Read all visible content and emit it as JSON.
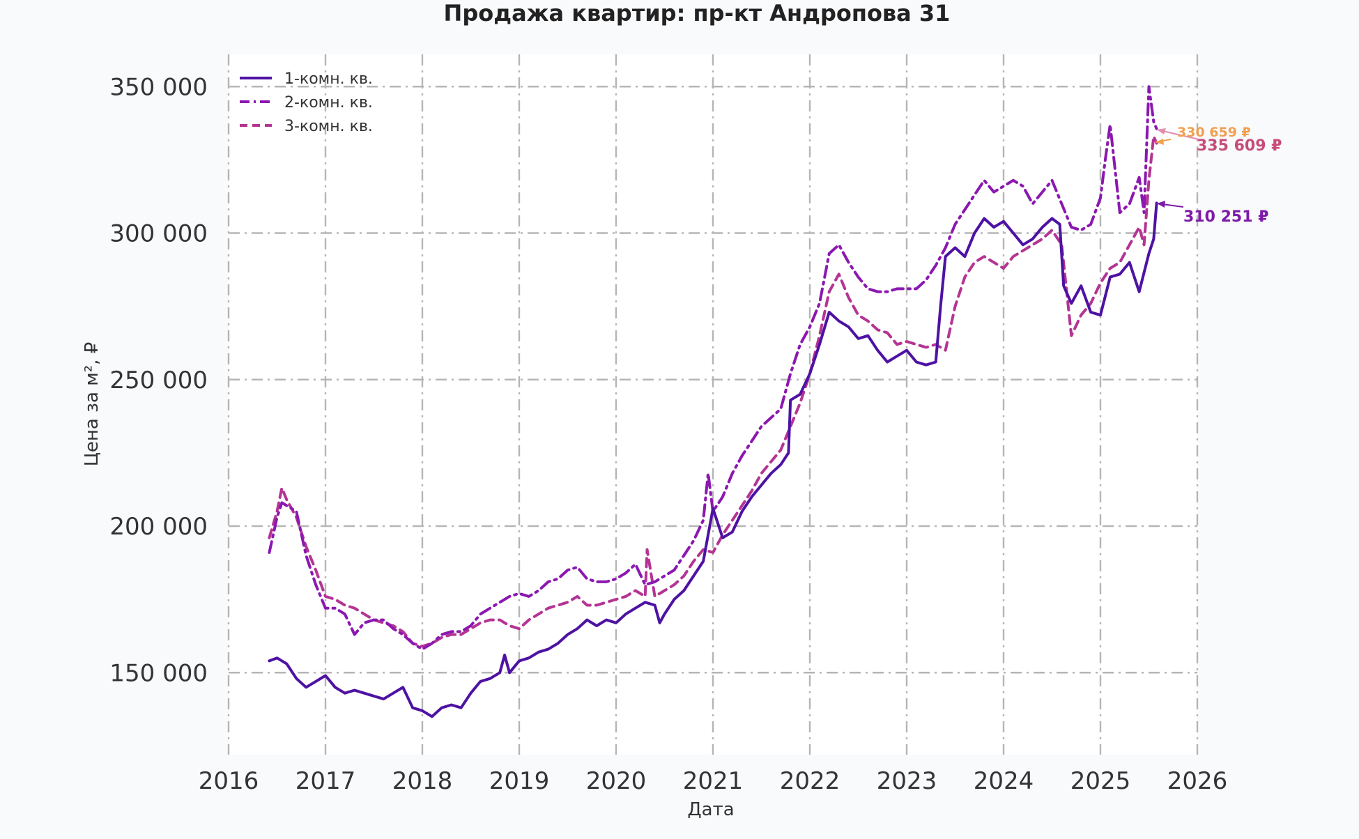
{
  "chart_data": {
    "type": "line",
    "title": "Продажа квартир: пр-кт Андропова 31",
    "xlabel": "Дата",
    "ylabel": "Цена за м², ₽",
    "xlim": [
      2016.0,
      2026.0
    ],
    "ylim": [
      122000,
      361000
    ],
    "x_ticks": [
      "2016",
      "2017",
      "2018",
      "2019",
      "2020",
      "2021",
      "2022",
      "2023",
      "2024",
      "2025",
      "2026"
    ],
    "y_ticks": [
      {
        "value": 150000,
        "label": "150 000"
      },
      {
        "value": 200000,
        "label": "200 000"
      },
      {
        "value": 250000,
        "label": "250 000"
      },
      {
        "value": 300000,
        "label": "300 000"
      },
      {
        "value": 350000,
        "label": "350 000"
      }
    ],
    "grid": true,
    "legend_position": "top-left",
    "series": [
      {
        "name": "1-комн. кв.",
        "color": "#4e12a3",
        "style": "solid",
        "x": [
          2016.42,
          2016.5,
          2016.6,
          2016.7,
          2016.8,
          2016.9,
          2017.0,
          2017.1,
          2017.2,
          2017.3,
          2017.4,
          2017.5,
          2017.6,
          2017.7,
          2017.8,
          2017.9,
          2018.0,
          2018.1,
          2018.2,
          2018.3,
          2018.4,
          2018.5,
          2018.6,
          2018.7,
          2018.8,
          2018.85,
          2018.9,
          2019.0,
          2019.1,
          2019.2,
          2019.3,
          2019.4,
          2019.5,
          2019.6,
          2019.7,
          2019.8,
          2019.9,
          2020.0,
          2020.1,
          2020.2,
          2020.3,
          2020.4,
          2020.45,
          2020.5,
          2020.6,
          2020.7,
          2020.8,
          2020.9,
          2021.0,
          2021.1,
          2021.2,
          2021.3,
          2021.4,
          2021.5,
          2021.6,
          2021.7,
          2021.78,
          2021.8,
          2021.9,
          2022.0,
          2022.1,
          2022.2,
          2022.3,
          2022.4,
          2022.5,
          2022.6,
          2022.7,
          2022.8,
          2022.9,
          2023.0,
          2023.1,
          2023.2,
          2023.3,
          2023.35,
          2023.4,
          2023.5,
          2023.6,
          2023.7,
          2023.8,
          2023.9,
          2024.0,
          2024.1,
          2024.2,
          2024.3,
          2024.4,
          2024.5,
          2024.58,
          2024.62,
          2024.7,
          2024.8,
          2024.9,
          2025.0,
          2025.1,
          2025.2,
          2025.3,
          2025.4,
          2025.5,
          2025.55,
          2025.58
        ],
        "values": [
          154000,
          155000,
          153000,
          148000,
          145000,
          147000,
          149000,
          145000,
          143000,
          144000,
          143000,
          142000,
          141000,
          143000,
          145000,
          138000,
          137000,
          135000,
          138000,
          139000,
          138000,
          143000,
          147000,
          148000,
          150000,
          156000,
          150000,
          154000,
          155000,
          157000,
          158000,
          160000,
          163000,
          165000,
          168000,
          166000,
          168000,
          167000,
          170000,
          172000,
          174000,
          173000,
          167000,
          170000,
          175000,
          178000,
          183000,
          188000,
          206000,
          196000,
          198000,
          205000,
          210000,
          214000,
          218000,
          221000,
          225000,
          243000,
          245000,
          252000,
          262000,
          273000,
          270000,
          268000,
          264000,
          265000,
          260000,
          256000,
          258000,
          260000,
          256000,
          255000,
          256000,
          275000,
          292000,
          295000,
          292000,
          300000,
          305000,
          302000,
          304000,
          300000,
          296000,
          298000,
          302000,
          305000,
          303000,
          282000,
          276000,
          282000,
          273000,
          272000,
          285000,
          286000,
          290000,
          280000,
          293000,
          298000,
          310251
        ]
      },
      {
        "name": "2-комн. кв.",
        "color": "#8b18b0",
        "style": "dashdot",
        "x": [
          2016.42,
          2016.5,
          2016.55,
          2016.6,
          2016.7,
          2016.8,
          2016.9,
          2017.0,
          2017.1,
          2017.2,
          2017.3,
          2017.4,
          2017.5,
          2017.6,
          2017.7,
          2017.8,
          2017.9,
          2018.0,
          2018.1,
          2018.2,
          2018.3,
          2018.4,
          2018.5,
          2018.6,
          2018.7,
          2018.8,
          2018.9,
          2019.0,
          2019.1,
          2019.2,
          2019.3,
          2019.4,
          2019.5,
          2019.6,
          2019.7,
          2019.8,
          2019.9,
          2020.0,
          2020.1,
          2020.2,
          2020.3,
          2020.4,
          2020.5,
          2020.6,
          2020.7,
          2020.8,
          2020.9,
          2020.95,
          2021.0,
          2021.1,
          2021.2,
          2021.3,
          2021.4,
          2021.5,
          2021.6,
          2021.7,
          2021.8,
          2021.9,
          2022.0,
          2022.1,
          2022.2,
          2022.3,
          2022.4,
          2022.5,
          2022.6,
          2022.7,
          2022.8,
          2022.9,
          2023.0,
          2023.1,
          2023.2,
          2023.3,
          2023.4,
          2023.5,
          2023.6,
          2023.7,
          2023.8,
          2023.9,
          2024.0,
          2024.1,
          2024.2,
          2024.3,
          2024.4,
          2024.5,
          2024.6,
          2024.7,
          2024.8,
          2024.9,
          2025.0,
          2025.05,
          2025.1,
          2025.2,
          2025.3,
          2025.4,
          2025.45,
          2025.5,
          2025.55,
          2025.58
        ],
        "values": [
          191000,
          203000,
          208000,
          207000,
          205000,
          190000,
          180000,
          172000,
          172000,
          170000,
          163000,
          167000,
          168000,
          168000,
          165000,
          163000,
          160000,
          158000,
          160000,
          163000,
          164000,
          164000,
          166000,
          170000,
          172000,
          174000,
          176000,
          177000,
          176000,
          178000,
          181000,
          182000,
          185000,
          186000,
          182000,
          181000,
          181000,
          182000,
          184000,
          187000,
          180000,
          181000,
          183000,
          185000,
          190000,
          195000,
          202000,
          218000,
          205000,
          210000,
          218000,
          224000,
          229000,
          234000,
          237000,
          240000,
          252000,
          262000,
          268000,
          276000,
          293000,
          296000,
          290000,
          285000,
          281000,
          280000,
          280000,
          281000,
          281000,
          281000,
          284000,
          289000,
          295000,
          303000,
          308000,
          313000,
          318000,
          314000,
          316000,
          318000,
          316000,
          310000,
          314000,
          318000,
          310000,
          302000,
          301000,
          303000,
          312000,
          325000,
          337000,
          307000,
          310000,
          319000,
          307000,
          350000,
          338000,
          335609
        ]
      },
      {
        "name": "3-комн. кв.",
        "color": "#b43494",
        "style": "dashed",
        "x": [
          2016.42,
          2016.5,
          2016.55,
          2016.6,
          2016.7,
          2016.8,
          2016.9,
          2017.0,
          2017.1,
          2017.2,
          2017.3,
          2017.4,
          2017.5,
          2017.6,
          2017.7,
          2017.8,
          2017.9,
          2018.0,
          2018.1,
          2018.2,
          2018.3,
          2018.4,
          2018.5,
          2018.6,
          2018.7,
          2018.8,
          2018.9,
          2019.0,
          2019.1,
          2019.2,
          2019.3,
          2019.4,
          2019.5,
          2019.6,
          2019.7,
          2019.8,
          2019.9,
          2020.0,
          2020.1,
          2020.2,
          2020.3,
          2020.32,
          2020.4,
          2020.5,
          2020.6,
          2020.7,
          2020.8,
          2020.9,
          2021.0,
          2021.1,
          2021.2,
          2021.3,
          2021.4,
          2021.5,
          2021.6,
          2021.7,
          2021.8,
          2021.9,
          2022.0,
          2022.1,
          2022.2,
          2022.3,
          2022.4,
          2022.5,
          2022.6,
          2022.7,
          2022.8,
          2022.9,
          2023.0,
          2023.1,
          2023.2,
          2023.3,
          2023.4,
          2023.5,
          2023.6,
          2023.7,
          2023.8,
          2023.9,
          2024.0,
          2024.1,
          2024.2,
          2024.3,
          2024.4,
          2024.5,
          2024.6,
          2024.7,
          2024.8,
          2024.9,
          2025.0,
          2025.1,
          2025.2,
          2025.3,
          2025.4,
          2025.45,
          2025.5,
          2025.55,
          2025.58
        ],
        "values": [
          196000,
          205000,
          213000,
          209000,
          203000,
          193000,
          185000,
          176000,
          175000,
          173000,
          172000,
          170000,
          168000,
          167000,
          166000,
          164000,
          160000,
          159000,
          160000,
          162000,
          163000,
          163000,
          165000,
          167000,
          168000,
          168000,
          166000,
          165000,
          168000,
          170000,
          172000,
          173000,
          174000,
          176000,
          173000,
          173000,
          174000,
          175000,
          176000,
          178000,
          176000,
          192000,
          176000,
          178000,
          180000,
          183000,
          188000,
          192000,
          191000,
          197000,
          202000,
          207000,
          212000,
          218000,
          222000,
          226000,
          234000,
          242000,
          252000,
          265000,
          280000,
          286000,
          278000,
          272000,
          270000,
          267000,
          266000,
          262000,
          263000,
          262000,
          261000,
          262000,
          260000,
          275000,
          285000,
          290000,
          292000,
          290000,
          288000,
          292000,
          294000,
          296000,
          298000,
          301000,
          296000,
          265000,
          272000,
          276000,
          283000,
          288000,
          290000,
          296000,
          302000,
          296000,
          318000,
          333000,
          330659
        ]
      }
    ],
    "annotations": [
      {
        "label": "310 251 ₽",
        "series": "1-комн. кв.",
        "color": "#7d1aa8"
      },
      {
        "label": "335 609 ₽",
        "series": "2-комн. кв.",
        "color": "#c64d79"
      },
      {
        "label": "330 659 ₽",
        "series": "3-комн. кв.",
        "color": "#f0a050"
      }
    ]
  }
}
